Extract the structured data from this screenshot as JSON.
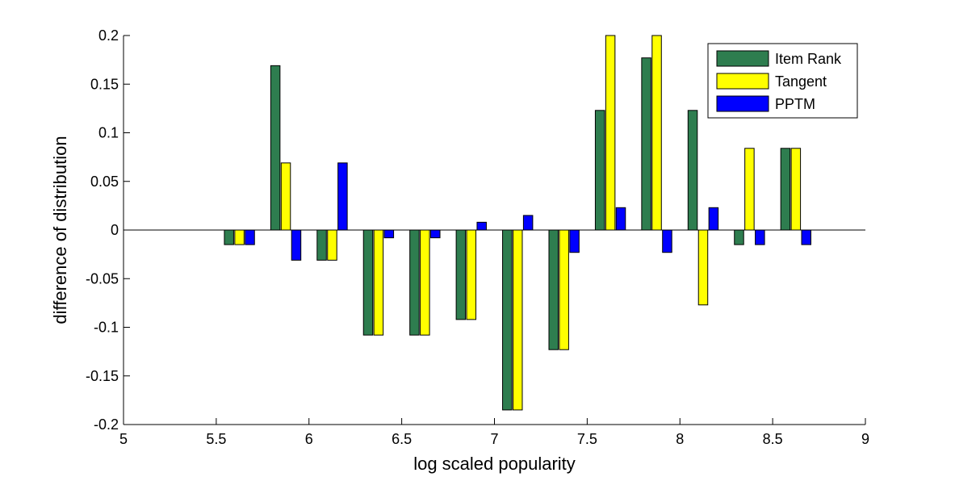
{
  "chart_data": {
    "type": "bar",
    "xlabel": "log scaled popularity",
    "ylabel": "difference of distribution",
    "xlim": [
      5,
      9
    ],
    "ylim": [
      -0.2,
      0.2
    ],
    "x_ticks": [
      "5",
      "5.5",
      "6",
      "6.5",
      "7",
      "7.5",
      "8",
      "8.5",
      "9"
    ],
    "y_ticks": [
      "0.2",
      "0.15",
      "0.1",
      "0.05",
      "0",
      "-0.05",
      "-0.1",
      "-0.15",
      "-0.2"
    ],
    "x": [
      5.625,
      5.875,
      6.125,
      6.375,
      6.625,
      6.875,
      7.125,
      7.375,
      7.625,
      7.875,
      8.125,
      8.375,
      8.625
    ],
    "series": [
      {
        "name": "Item Rank",
        "color": "#2e7d4f",
        "values": [
          -0.015,
          0.169,
          -0.031,
          -0.108,
          -0.108,
          -0.092,
          -0.185,
          -0.123,
          0.123,
          0.177,
          0.123,
          -0.015,
          0.084
        ]
      },
      {
        "name": "Tangent",
        "color": "#ffff00",
        "values": [
          -0.015,
          0.069,
          -0.031,
          -0.108,
          -0.108,
          -0.092,
          -0.185,
          -0.123,
          0.2,
          0.2,
          -0.077,
          0.084,
          0.084
        ]
      },
      {
        "name": "PPTM",
        "color": "#0000ff",
        "values": [
          -0.015,
          -0.031,
          0.069,
          -0.008,
          -0.008,
          0.008,
          0.015,
          -0.023,
          0.023,
          -0.023,
          0.023,
          -0.015,
          -0.015
        ]
      }
    ],
    "legend_position": "top-right",
    "grid": false
  }
}
